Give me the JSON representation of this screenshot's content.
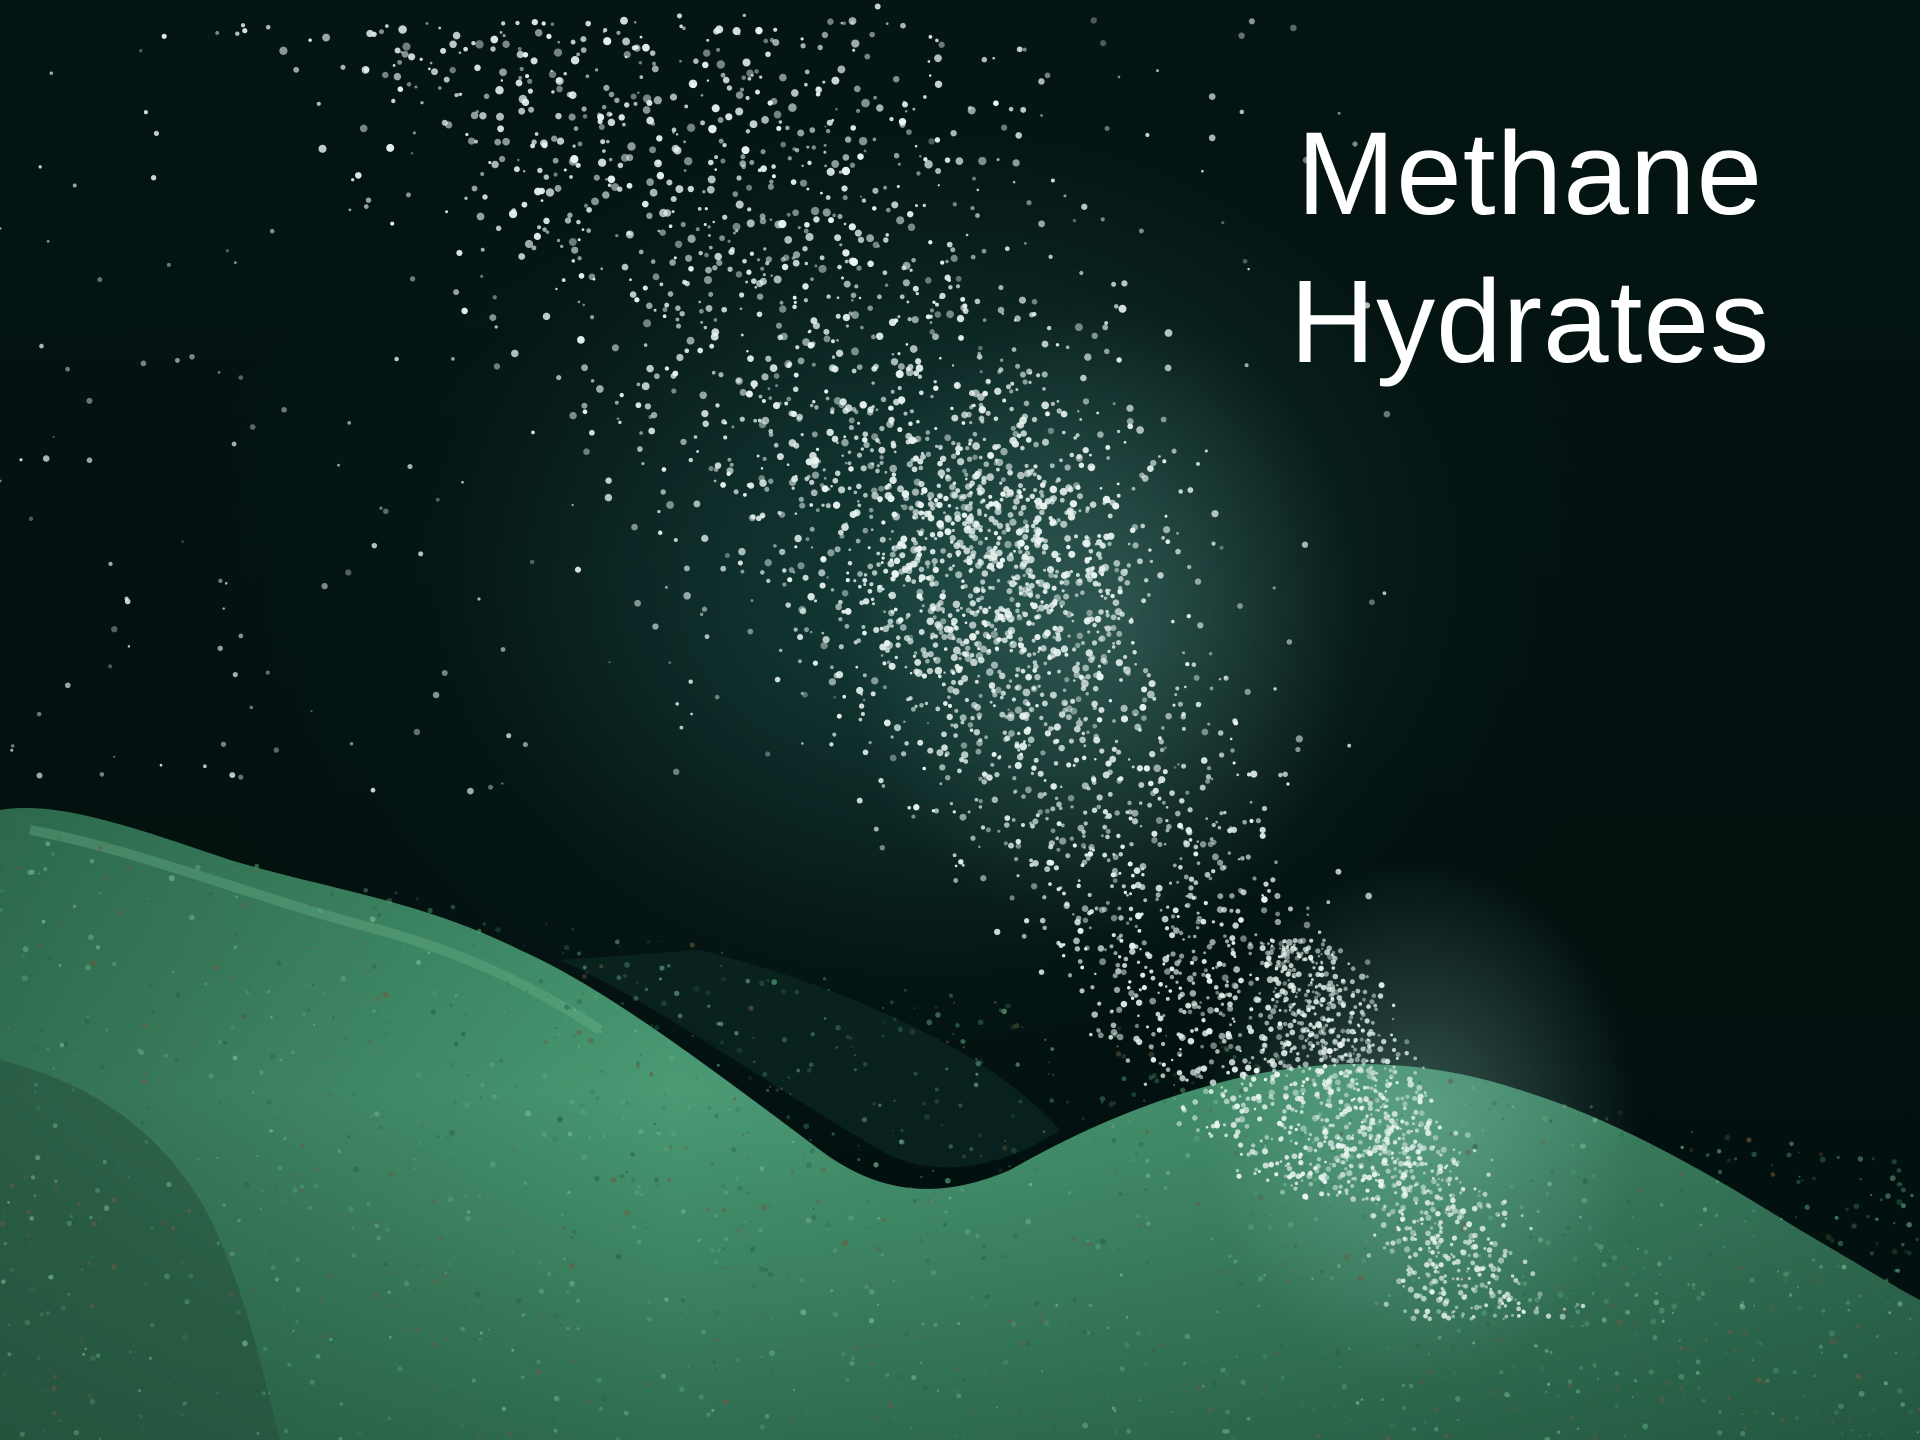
{
  "slide": {
    "caption_line1": "Methane",
    "caption_line2": "Hydrates"
  },
  "colors": {
    "water": "#03110f",
    "sediment": "#3f8c68",
    "bubbles": "#e8f4f0",
    "caption": "#ffffff"
  }
}
